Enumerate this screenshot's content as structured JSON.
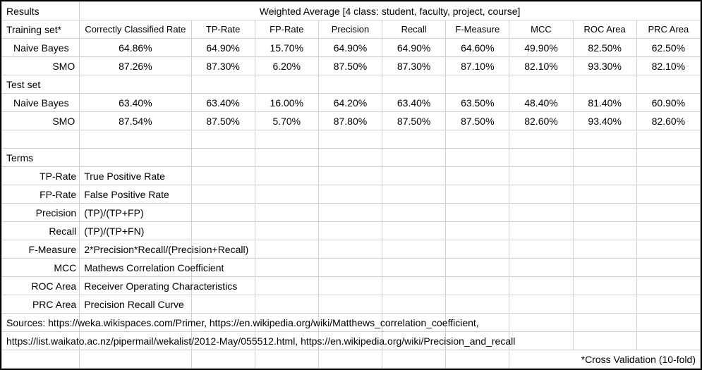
{
  "header": {
    "results_label": "Results",
    "weighted_avg": "Weighted Average [4 class: student, faculty, project, course]"
  },
  "columns": {
    "ccr": "Correctly Classified Rate",
    "tp": "TP-Rate",
    "fp": "FP-Rate",
    "prec": "Precision",
    "rec": "Recall",
    "fm": "F-Measure",
    "mcc": "MCC",
    "roc": "ROC Area",
    "prc": "PRC Area"
  },
  "sections": {
    "training": "Training set*",
    "test": "Test set"
  },
  "rows": {
    "train_nb": {
      "name": "Naive Bayes",
      "ccr": "64.86%",
      "tp": "64.90%",
      "fp": "15.70%",
      "prec": "64.90%",
      "rec": "64.90%",
      "fm": "64.60%",
      "mcc": "49.90%",
      "roc": "82.50%",
      "prc": "62.50%"
    },
    "train_smo": {
      "name": "SMO",
      "ccr": "87.26%",
      "tp": "87.30%",
      "fp": "6.20%",
      "prec": "87.50%",
      "rec": "87.30%",
      "fm": "87.10%",
      "mcc": "82.10%",
      "roc": "93.30%",
      "prc": "82.10%"
    },
    "test_nb": {
      "name": "Naive Bayes",
      "ccr": "63.40%",
      "tp": "63.40%",
      "fp": "16.00%",
      "prec": "64.20%",
      "rec": "63.40%",
      "fm": "63.50%",
      "mcc": "48.40%",
      "roc": "81.40%",
      "prc": "60.90%"
    },
    "test_smo": {
      "name": "SMO",
      "ccr": "87.54%",
      "tp": "87.50%",
      "fp": "5.70%",
      "prec": "87.80%",
      "rec": "87.50%",
      "fm": "87.50%",
      "mcc": "82.60%",
      "roc": "93.40%",
      "prc": "82.60%"
    }
  },
  "terms_heading": "Terms",
  "terms": {
    "tp": {
      "k": "TP-Rate",
      "v": "True Positive Rate"
    },
    "fp": {
      "k": "FP-Rate",
      "v": "False Positive Rate"
    },
    "prec": {
      "k": "Precision",
      "v": "(TP)/(TP+FP)"
    },
    "rec": {
      "k": "Recall",
      "v": "(TP)/(TP+FN)"
    },
    "fm": {
      "k": "F-Measure",
      "v": "2*Precision*Recall/(Precision+Recall)"
    },
    "mcc": {
      "k": "MCC",
      "v": "Mathews Correlation Coefficient"
    },
    "roc": {
      "k": "ROC Area",
      "v": "Receiver Operating Characteristics"
    },
    "prc": {
      "k": "PRC Area",
      "v": "Precision Recall Curve"
    }
  },
  "sources": {
    "line1": "Sources: https://weka.wikispaces.com/Primer, https://en.wikipedia.org/wiki/Matthews_correlation_coefficient,",
    "line2": "https://list.waikato.ac.nz/pipermail/wekalist/2012-May/055512.html, https://en.wikipedia.org/wiki/Precision_and_recall"
  },
  "footnote": "*Cross Validation (10-fold)",
  "style": {
    "border_outer": "#000000",
    "border_grid": "#d0d0d0",
    "font_family": "Arial",
    "font_size_pt": 11,
    "bold_rows": [
      "train_smo",
      "test_smo"
    ]
  }
}
